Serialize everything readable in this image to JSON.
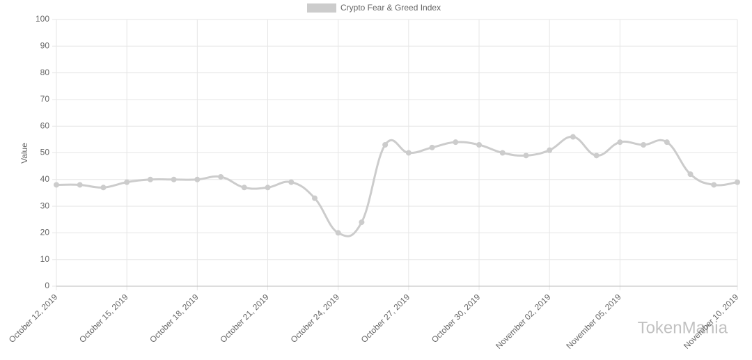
{
  "chart_data": {
    "type": "line",
    "ylabel": "Value",
    "categories": [
      "October 12, 2019",
      null,
      null,
      "October 15, 2019",
      null,
      null,
      "October 18, 2019",
      null,
      null,
      "October 21, 2019",
      null,
      null,
      "October 24, 2019",
      null,
      null,
      "October 27, 2019",
      null,
      null,
      "October 30, 2019",
      null,
      null,
      "November 02, 2019",
      null,
      null,
      "November 05, 2019",
      null,
      null,
      null,
      null,
      "November 10, 2019"
    ],
    "series": [
      {
        "name": "Crypto Fear & Greed Index",
        "color": "#cccccc",
        "values": [
          38,
          38,
          37,
          39,
          40,
          40,
          40,
          41,
          37,
          37,
          39,
          33,
          20,
          24,
          53,
          50,
          52,
          54,
          53,
          50,
          49,
          51,
          56,
          49,
          54,
          53,
          54,
          42,
          38,
          39
        ]
      }
    ],
    "ylim": [
      0,
      100
    ],
    "yticks": [
      0,
      10,
      20,
      30,
      40,
      50,
      60,
      70,
      80,
      90,
      100
    ],
    "grid": true,
    "legend": "top",
    "watermark": "TokenMania"
  }
}
